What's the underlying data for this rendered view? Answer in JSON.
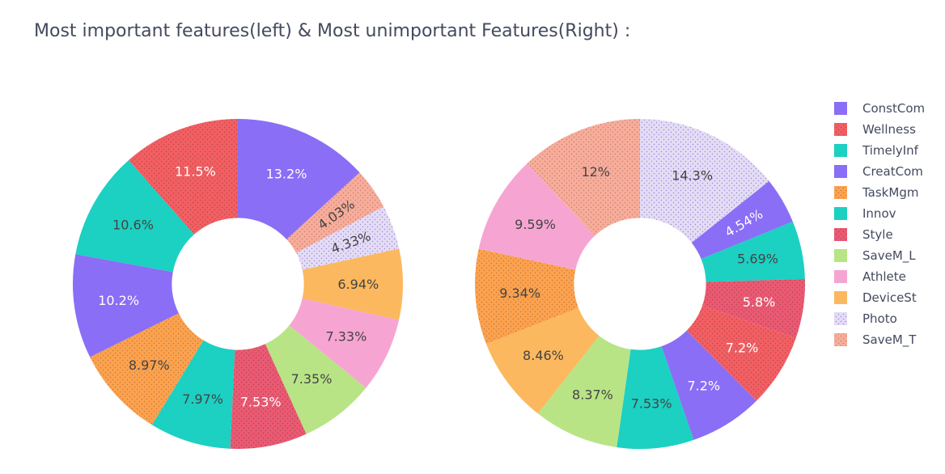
{
  "title": "Most important features(left) & Most unimportant Features(Right) :",
  "colors": {
    "ConstCom": "#8a6ef5",
    "Wellness": "#f25f63",
    "TimelyInf": "#1cd0c2",
    "CreatCom": "#8a6ef5",
    "TaskMgm": "#fca24f",
    "Innov": "#1cd0c2",
    "Style": "#ea5a72",
    "SaveM_L": "#b8e486",
    "Athlete": "#f6a5d2",
    "DeviceSt": "#fcb85e",
    "Photo": "#e3dcf5",
    "SaveM_T": "#f8ac9a"
  },
  "patterns": {
    "Wellness": "dots",
    "TaskMgm": "dots",
    "Style": "dots",
    "Photo": "dots",
    "SaveM_T": "dots"
  },
  "legend": {
    "position": "right",
    "items": [
      "ConstCom",
      "Wellness",
      "TimelyInf",
      "CreatCom",
      "TaskMgm",
      "Innov",
      "Style",
      "SaveM_L",
      "Athlete",
      "DeviceSt",
      "Photo",
      "SaveM_T"
    ]
  },
  "chart_data": [
    {
      "type": "pie",
      "hole": 0.4,
      "direction": "clockwise",
      "slices": [
        {
          "label": "ConstCom",
          "percent": 13.2,
          "text": "13.2%"
        },
        {
          "label": "SaveM_T",
          "percent": 4.03,
          "text": "4.03%"
        },
        {
          "label": "Photo",
          "percent": 4.33,
          "text": "4.33%"
        },
        {
          "label": "DeviceSt",
          "percent": 6.94,
          "text": "6.94%"
        },
        {
          "label": "Athlete",
          "percent": 7.33,
          "text": "7.33%"
        },
        {
          "label": "SaveM_L",
          "percent": 7.35,
          "text": "7.35%"
        },
        {
          "label": "Style",
          "percent": 7.53,
          "text": "7.53%"
        },
        {
          "label": "Innov",
          "percent": 7.97,
          "text": "7.97%"
        },
        {
          "label": "TaskMgm",
          "percent": 8.97,
          "text": "8.97%"
        },
        {
          "label": "CreatCom",
          "percent": 10.2,
          "text": "10.2%"
        },
        {
          "label": "TimelyInf",
          "percent": 10.6,
          "text": "10.6%"
        },
        {
          "label": "Wellness",
          "percent": 11.5,
          "text": "11.5%"
        }
      ]
    },
    {
      "type": "pie",
      "hole": 0.4,
      "direction": "clockwise",
      "slices": [
        {
          "label": "Photo",
          "percent": 14.3,
          "text": "14.3%"
        },
        {
          "label": "CreatCom",
          "percent": 4.54,
          "text": "4.54%"
        },
        {
          "label": "Innov",
          "percent": 5.69,
          "text": "5.69%"
        },
        {
          "label": "Style",
          "percent": 5.8,
          "text": "5.8%"
        },
        {
          "label": "Wellness",
          "percent": 7.2,
          "text": "7.2%"
        },
        {
          "label": "ConstCom",
          "percent": 7.2,
          "text": "7.2%"
        },
        {
          "label": "TimelyInf",
          "percent": 7.53,
          "text": "7.53%"
        },
        {
          "label": "SaveM_L",
          "percent": 8.37,
          "text": "8.37%"
        },
        {
          "label": "DeviceSt",
          "percent": 8.46,
          "text": "8.46%"
        },
        {
          "label": "TaskMgm",
          "percent": 9.34,
          "text": "9.34%"
        },
        {
          "label": "Athlete",
          "percent": 9.59,
          "text": "9.59%"
        },
        {
          "label": "SaveM_T",
          "percent": 12,
          "text": "12%"
        }
      ]
    }
  ]
}
